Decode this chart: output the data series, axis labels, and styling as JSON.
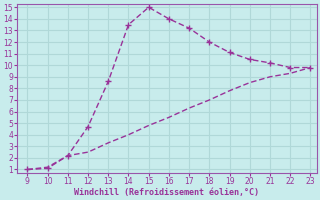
{
  "xlabel": "Windchill (Refroidissement éolien,°C)",
  "xlim": [
    9,
    23
  ],
  "ylim": [
    1,
    15
  ],
  "xticks": [
    9,
    10,
    11,
    12,
    13,
    14,
    15,
    16,
    17,
    18,
    19,
    20,
    21,
    22,
    23
  ],
  "yticks": [
    1,
    2,
    3,
    4,
    5,
    6,
    7,
    8,
    9,
    10,
    11,
    12,
    13,
    14,
    15
  ],
  "line1_x": [
    9,
    10,
    11,
    12,
    13,
    14,
    15,
    16,
    17,
    18,
    19,
    20,
    21,
    22,
    23
  ],
  "line1_y": [
    1.0,
    1.1,
    2.2,
    4.7,
    8.6,
    13.5,
    15.0,
    14.0,
    13.2,
    12.0,
    11.1,
    10.5,
    10.2,
    9.8,
    9.8
  ],
  "line2_x": [
    9,
    10,
    11,
    12,
    13,
    14,
    15,
    16,
    17,
    18,
    19,
    20,
    21,
    22,
    23
  ],
  "line2_y": [
    1.0,
    1.2,
    2.2,
    2.5,
    3.3,
    4.0,
    4.8,
    5.5,
    6.3,
    7.0,
    7.8,
    8.5,
    9.0,
    9.3,
    9.8
  ],
  "line_color": "#993399",
  "bg_color": "#c8ecec",
  "grid_color": "#b0d8d8",
  "border_color": "#9955aa",
  "tick_label_color": "#993399",
  "xlabel_color": "#993399",
  "marker": "+",
  "marker_size": 5,
  "line_width": 1.0
}
